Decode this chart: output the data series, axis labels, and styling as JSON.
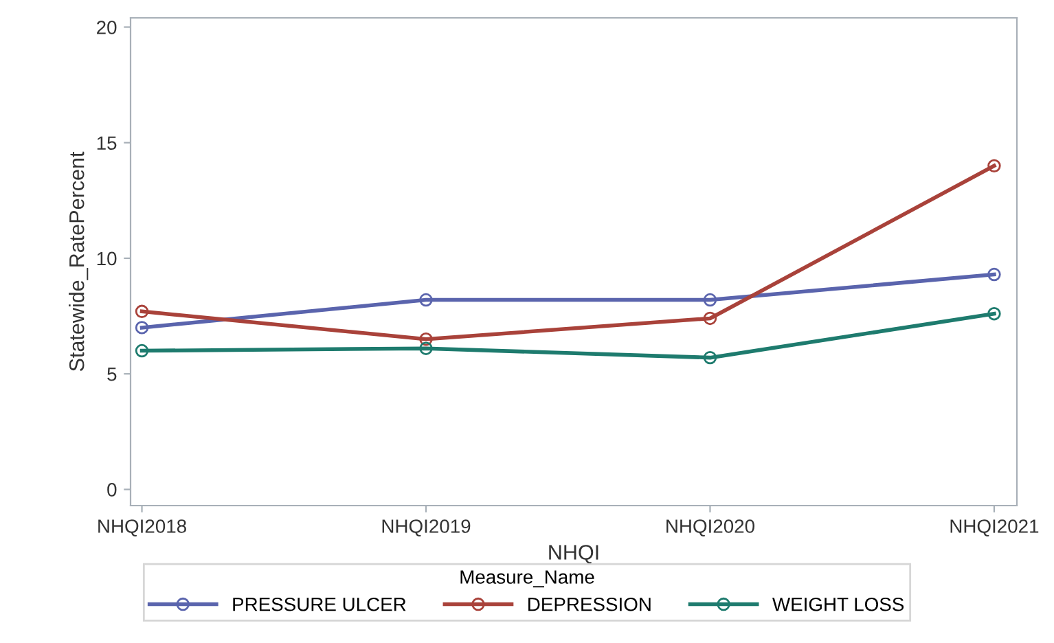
{
  "chart_data": {
    "type": "line",
    "xlabel": "NHQI",
    "ylabel": "Statewide_RatePercent",
    "legend_title": "Measure_Name",
    "legend": "bottom",
    "marker": "circle",
    "line_style": "solid",
    "grid": false,
    "categories": [
      "NHQI2018",
      "NHQI2019",
      "NHQI2020",
      "NHQI2021"
    ],
    "ylim": [
      -0.7,
      20.4
    ],
    "yticks": [
      0,
      5,
      10,
      15,
      20
    ],
    "series": [
      {
        "name": "PRESSURE ULCER",
        "color": "#5a64ad",
        "values": [
          7.0,
          8.2,
          8.2,
          9.3
        ]
      },
      {
        "name": "DEPRESSION",
        "color": "#a9423a",
        "values": [
          7.7,
          6.5,
          7.4,
          14.0
        ]
      },
      {
        "name": "WEIGHT LOSS",
        "color": "#1e7b6e",
        "values": [
          6.0,
          6.1,
          5.7,
          7.6
        ]
      }
    ]
  }
}
